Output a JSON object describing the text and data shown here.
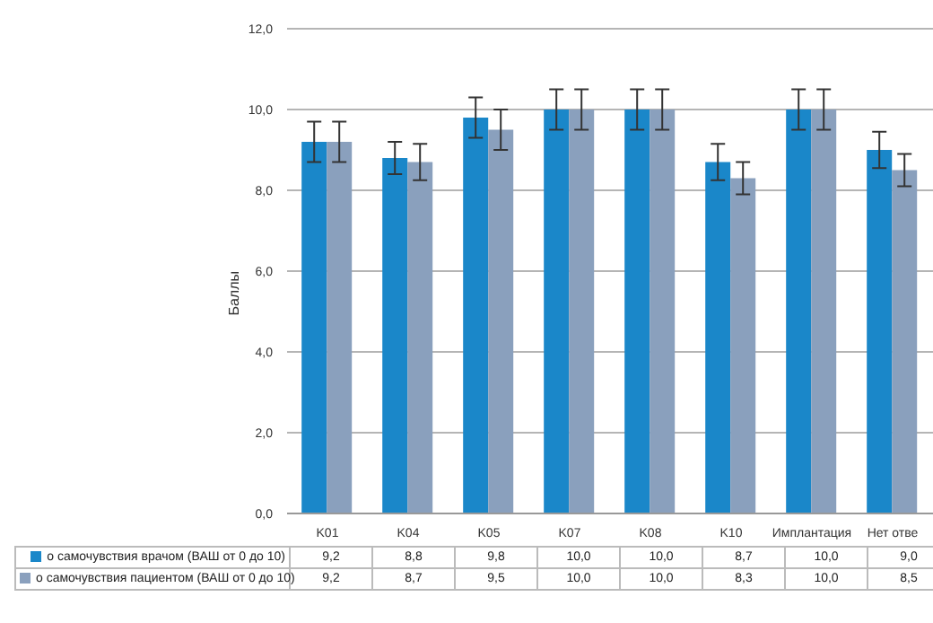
{
  "chart_data": {
    "type": "bar",
    "ylabel": "Баллы",
    "categories": [
      "K01",
      "K04",
      "K05",
      "K07",
      "K08",
      "K10",
      "Имплантация",
      "Нет отве"
    ],
    "series": [
      {
        "name": "о самочувствия врачом (ВАШ от 0 до 10)",
        "color": "#1a87c9",
        "values": [
          9.2,
          8.8,
          9.8,
          10.0,
          10.0,
          8.7,
          10.0,
          9.0
        ],
        "value_labels": [
          "9,2",
          "8,8",
          "9,8",
          "10,0",
          "10,0",
          "8,7",
          "10,0",
          "9,0"
        ],
        "errors": [
          0.5,
          0.4,
          0.5,
          0.5,
          0.5,
          0.45,
          0.5,
          0.45
        ]
      },
      {
        "name": "о самочувствия пациентом (ВАШ от 0 до 10)",
        "color": "#8aa0bd",
        "values": [
          9.2,
          8.7,
          9.5,
          10.0,
          10.0,
          8.3,
          10.0,
          8.5
        ],
        "value_labels": [
          "9,2",
          "8,7",
          "9,5",
          "10,0",
          "10,0",
          "8,3",
          "10,0",
          "8,5"
        ],
        "errors": [
          0.5,
          0.45,
          0.5,
          0.5,
          0.5,
          0.4,
          0.5,
          0.4
        ]
      }
    ],
    "ylim": [
      0,
      12
    ],
    "yticks": [
      {
        "value": 0,
        "label": "0,0"
      },
      {
        "value": 2,
        "label": "2,0"
      },
      {
        "value": 4,
        "label": "4,0"
      },
      {
        "value": 6,
        "label": "6,0"
      },
      {
        "value": 8,
        "label": "8,0"
      },
      {
        "value": 10,
        "label": "10,0"
      },
      {
        "value": 12,
        "label": "12,0"
      }
    ],
    "grid": "y",
    "legend": "bottom left"
  }
}
